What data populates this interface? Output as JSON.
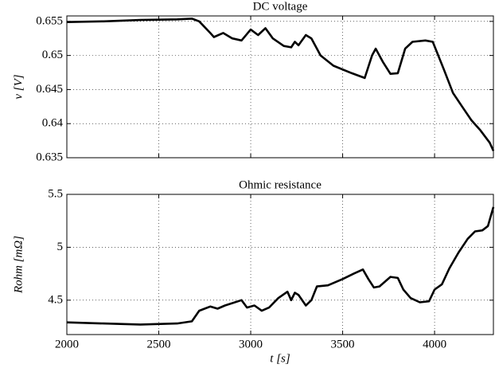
{
  "chart_data": [
    {
      "type": "line",
      "title": "DC voltage",
      "ylabel": "v [V]",
      "x": [
        2000,
        2200,
        2400,
        2600,
        2680,
        2720,
        2780,
        2800,
        2850,
        2900,
        2950,
        3000,
        3040,
        3080,
        3120,
        3180,
        3220,
        3240,
        3260,
        3300,
        3330,
        3380,
        3450,
        3550,
        3620,
        3660,
        3680,
        3720,
        3760,
        3800,
        3840,
        3880,
        3950,
        3990,
        4050,
        4100,
        4150,
        4200,
        4250,
        4300,
        4320
      ],
      "series": [
        {
          "name": "v",
          "color": "#000000",
          "values": [
            0.6549,
            0.655,
            0.6552,
            0.6553,
            0.6554,
            0.655,
            0.6533,
            0.6527,
            0.6533,
            0.6525,
            0.6522,
            0.6538,
            0.653,
            0.654,
            0.6525,
            0.6514,
            0.6512,
            0.652,
            0.6515,
            0.653,
            0.6525,
            0.65,
            0.6485,
            0.6474,
            0.6467,
            0.65,
            0.651,
            0.649,
            0.6473,
            0.6474,
            0.651,
            0.652,
            0.6522,
            0.652,
            0.648,
            0.6445,
            0.6425,
            0.6405,
            0.639,
            0.6372,
            0.636
          ]
        }
      ],
      "xlim": [
        2000,
        4320
      ],
      "xticks": [
        2000,
        2500,
        3000,
        3500,
        4000
      ],
      "ylim": [
        0.635,
        0.6558
      ],
      "yticks": [
        0.635,
        0.64,
        0.645,
        0.65,
        0.655
      ],
      "grid": true
    },
    {
      "type": "line",
      "title": "Ohmic resistance",
      "ylabel": "Rohm [mΩ]",
      "xlabel": "t [s]",
      "x": [
        2000,
        2200,
        2400,
        2600,
        2680,
        2720,
        2780,
        2820,
        2860,
        2950,
        2980,
        3020,
        3060,
        3100,
        3150,
        3200,
        3220,
        3240,
        3260,
        3300,
        3330,
        3360,
        3420,
        3500,
        3560,
        3610,
        3640,
        3670,
        3700,
        3760,
        3800,
        3830,
        3870,
        3920,
        3970,
        4000,
        4040,
        4080,
        4130,
        4180,
        4220,
        4260,
        4290,
        4320
      ],
      "series": [
        {
          "name": "R",
          "color": "#000000",
          "values": [
            4.29,
            4.28,
            4.27,
            4.28,
            4.3,
            4.4,
            4.44,
            4.42,
            4.45,
            4.5,
            4.43,
            4.45,
            4.4,
            4.43,
            4.52,
            4.58,
            4.5,
            4.57,
            4.55,
            4.45,
            4.5,
            4.63,
            4.64,
            4.7,
            4.75,
            4.79,
            4.7,
            4.62,
            4.63,
            4.72,
            4.71,
            4.6,
            4.52,
            4.48,
            4.49,
            4.6,
            4.65,
            4.8,
            4.95,
            5.08,
            5.15,
            5.16,
            5.2,
            5.38
          ]
        }
      ],
      "xlim": [
        2000,
        4320
      ],
      "xticks": [
        2000,
        2500,
        3000,
        3500,
        4000
      ],
      "ylim": [
        4.175,
        5.5
      ],
      "yticks": [
        4.5,
        5,
        5.5
      ],
      "grid": true
    }
  ]
}
